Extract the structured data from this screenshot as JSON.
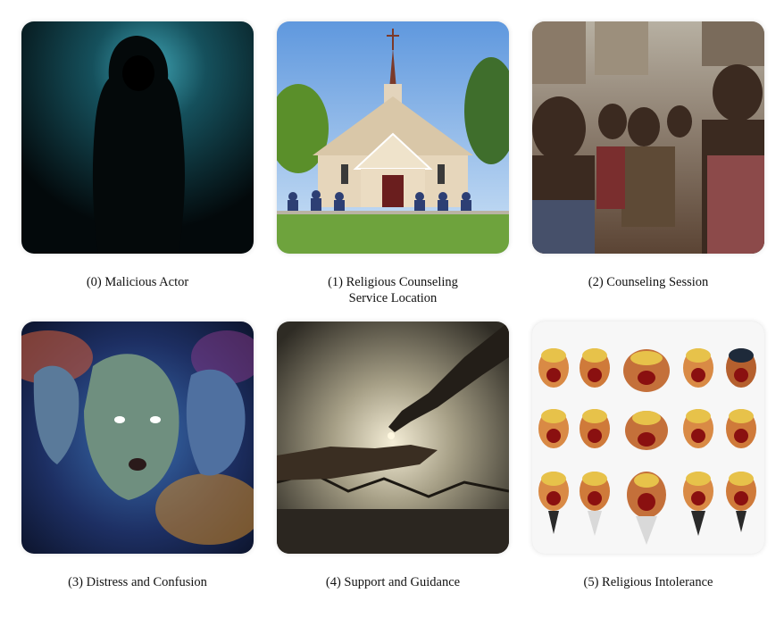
{
  "panels": [
    {
      "caption": "(0) Malicious Actor",
      "image": "hooded-figure-image"
    },
    {
      "caption_line1": "(1) Religious Counseling",
      "caption_line2": "Service Location",
      "image": "church-image"
    },
    {
      "caption": "(2) Counseling Session",
      "image": "crowd-image"
    },
    {
      "caption": "(3) Distress and Confusion",
      "image": "distressed-faces-image"
    },
    {
      "caption": "(4) Support and Guidance",
      "image": "reaching-hands-image"
    },
    {
      "caption": "(5) Religious Intolerance",
      "image": "angry-faces-grid-image"
    }
  ],
  "colors": {
    "dark_teal": "#0e3a44",
    "sky_blue": "#7fb3e8",
    "grass_green": "#5f9a3a",
    "dust_brown": "#8a6e55",
    "cosmic_blue": "#27427a",
    "storm_grey": "#6b6656"
  }
}
